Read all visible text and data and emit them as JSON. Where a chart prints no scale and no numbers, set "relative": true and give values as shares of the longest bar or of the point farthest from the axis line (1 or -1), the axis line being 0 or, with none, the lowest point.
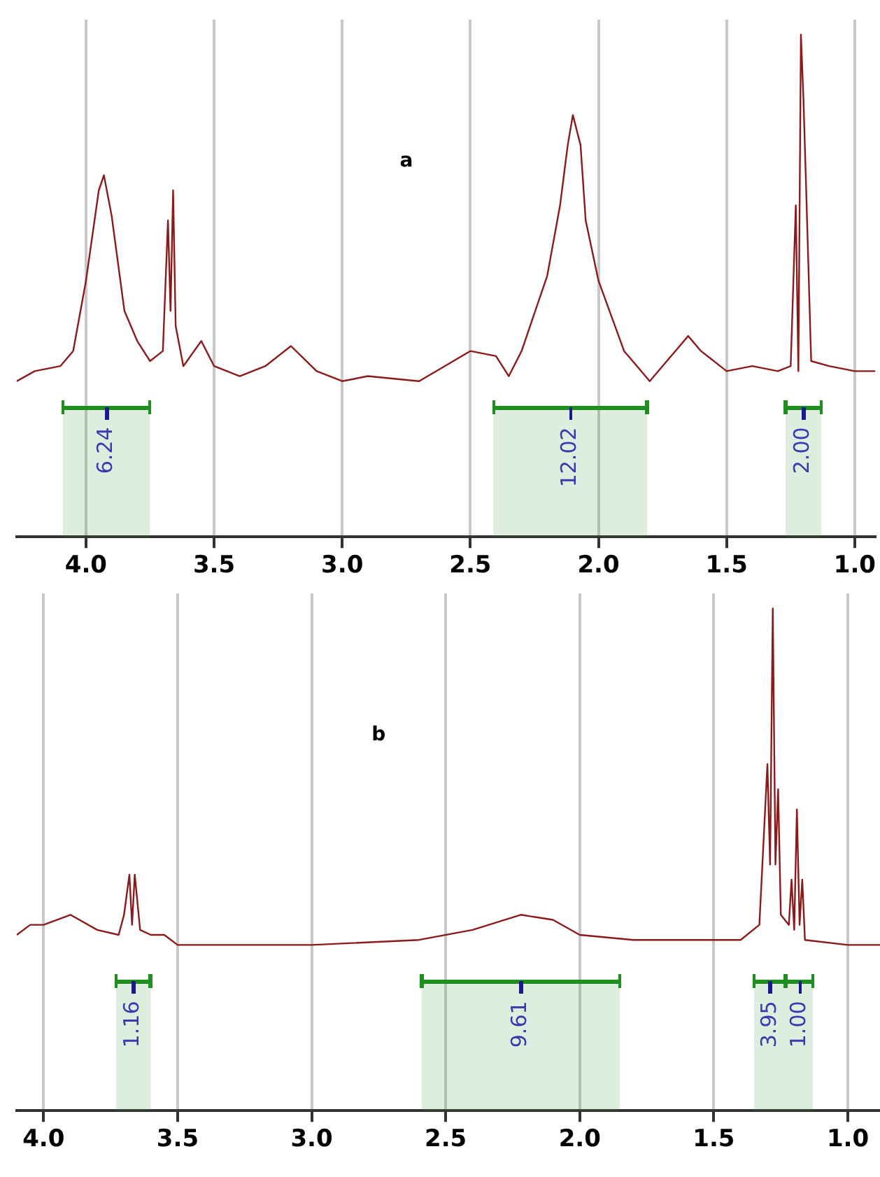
{
  "chart_data": [
    {
      "type": "line",
      "title": "a",
      "relative": true,
      "grid": "x",
      "legend": false,
      "marker": "none",
      "line_style": "solid",
      "xlim": [
        4.27,
        0.92
      ],
      "xticks": [
        {
          "value": 4.0,
          "label": "4.0"
        },
        3.5,
        {
          "value": 3.0,
          "label": "3.0"
        },
        2.5,
        {
          "value": 2.0,
          "label": "2.0"
        },
        1.5,
        {
          "value": 1.0,
          "label": "1.0"
        }
      ],
      "x": [
        4.27,
        4.2,
        4.1,
        4.05,
        4.0,
        3.95,
        3.93,
        3.9,
        3.85,
        3.8,
        3.75,
        3.7,
        3.68,
        3.67,
        3.66,
        3.65,
        3.62,
        3.55,
        3.5,
        3.4,
        3.3,
        3.2,
        3.1,
        3.0,
        2.9,
        2.7,
        2.6,
        2.5,
        2.4,
        2.35,
        2.3,
        2.2,
        2.15,
        2.12,
        2.1,
        2.07,
        2.05,
        2.0,
        1.9,
        1.8,
        1.7,
        1.65,
        1.6,
        1.5,
        1.4,
        1.3,
        1.25,
        1.23,
        1.22,
        1.21,
        1.2,
        1.19,
        1.17,
        1.1,
        1.0,
        0.92
      ],
      "series": [
        {
          "color": "#8b1a1a",
          "values": [
            0.31,
            0.33,
            0.34,
            0.37,
            0.51,
            0.69,
            0.72,
            0.64,
            0.45,
            0.39,
            0.35,
            0.37,
            0.63,
            0.45,
            0.69,
            0.42,
            0.34,
            0.39,
            0.34,
            0.32,
            0.34,
            0.38,
            0.33,
            0.31,
            0.32,
            0.31,
            0.34,
            0.37,
            0.36,
            0.32,
            0.37,
            0.52,
            0.66,
            0.78,
            0.84,
            0.78,
            0.63,
            0.51,
            0.37,
            0.31,
            0.37,
            0.4,
            0.37,
            0.33,
            0.34,
            0.33,
            0.34,
            0.66,
            0.33,
            1,
            0.87,
            0.7,
            0.35,
            0.34,
            0.33,
            0.33
          ]
        }
      ],
      "bands": [
        {
          "axis": "x",
          "from": 4.09,
          "to": 3.75,
          "label": "6.24",
          "color": "#1f8f1f"
        },
        {
          "axis": "x",
          "from": 2.41,
          "to": 1.81,
          "label": "12.02",
          "color": "#1f8f1f"
        },
        {
          "axis": "x",
          "from": 1.27,
          "to": 1.13,
          "label": "2.00",
          "color": "#1f8f1f"
        }
      ]
    },
    {
      "type": "line",
      "title": "b",
      "relative": true,
      "grid": "x",
      "legend": false,
      "marker": "none",
      "line_style": "solid",
      "xlim": [
        4.1,
        0.88
      ],
      "xticks": [
        {
          "value": 4.0,
          "label": "4.0"
        },
        3.5,
        {
          "value": 3.0,
          "label": "3.0"
        },
        2.5,
        {
          "value": 2.0,
          "label": "2.0"
        },
        1.5,
        {
          "value": 1.0,
          "label": "1.0"
        }
      ],
      "x": [
        4.1,
        4.05,
        4.0,
        3.9,
        3.8,
        3.72,
        3.7,
        3.68,
        3.67,
        3.66,
        3.64,
        3.6,
        3.55,
        3.5,
        3.0,
        2.6,
        2.4,
        2.22,
        2.1,
        2.0,
        1.8,
        1.4,
        1.33,
        1.3,
        1.29,
        1.28,
        1.27,
        1.26,
        1.25,
        1.22,
        1.21,
        1.2,
        1.19,
        1.18,
        1.17,
        1.16,
        1.0,
        0.88
      ],
      "series": [
        {
          "color": "#8b1a1a",
          "values": [
            0.35,
            0.37,
            0.37,
            0.39,
            0.36,
            0.35,
            0.39,
            0.47,
            0.37,
            0.47,
            0.36,
            0.35,
            0.35,
            0.33,
            0.33,
            0.34,
            0.36,
            0.39,
            0.38,
            0.35,
            0.34,
            0.34,
            0.37,
            0.69,
            0.49,
            1,
            0.49,
            0.64,
            0.39,
            0.37,
            0.46,
            0.36,
            0.6,
            0.37,
            0.46,
            0.34,
            0.33,
            0.33
          ]
        }
      ],
      "bands": [
        {
          "axis": "x",
          "from": 3.73,
          "to": 3.6,
          "label": "1.16",
          "color": "#1f8f1f"
        },
        {
          "axis": "x",
          "from": 2.59,
          "to": 1.85,
          "label": "9.61",
          "color": "#1f8f1f"
        },
        {
          "axis": "x",
          "from": 1.35,
          "to": 1.23,
          "label": "3.95",
          "color": "#1f8f1f"
        },
        {
          "axis": "x",
          "from": 1.23,
          "to": 1.13,
          "label": "1.00",
          "color": "#1f8f1f"
        }
      ]
    }
  ]
}
